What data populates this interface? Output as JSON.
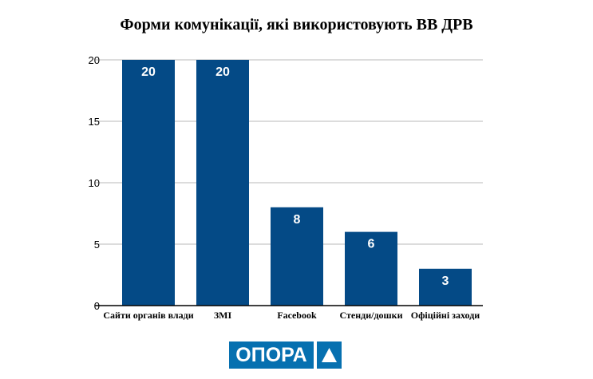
{
  "chart_data": {
    "type": "bar",
    "title": "Форми комунікації, які використовують ВВ ДРВ",
    "categories": [
      "Сайти органів влади",
      "ЗМІ",
      "Facebook",
      "Стенди/дошки",
      "Офіційні заходи"
    ],
    "values": [
      20,
      20,
      8,
      6,
      3
    ],
    "ylim": [
      0,
      20
    ],
    "yticks": [
      0,
      5,
      10,
      15,
      20
    ],
    "grid": true,
    "bar_color": "#044a86",
    "data_labels": true
  },
  "logo": {
    "text": "ОПОРА",
    "color": "#0670b0"
  }
}
